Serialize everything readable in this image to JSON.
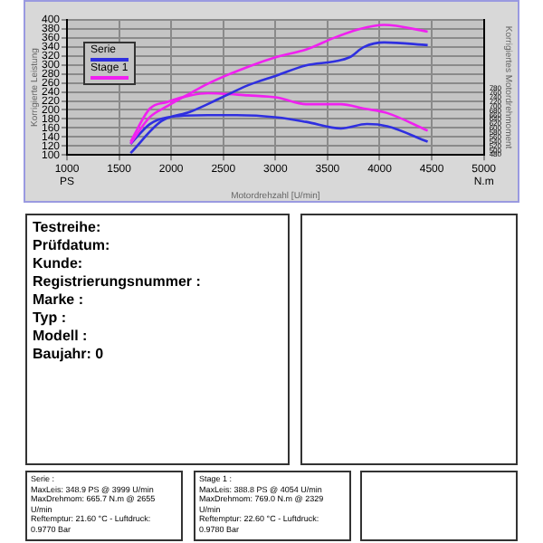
{
  "chart_data": {
    "type": "line",
    "xlabel": "Motordrehzahl [U/min]",
    "ylabel": "Korrigierte Leistung",
    "y2label": "Korrigiertes Motordrehmoment",
    "xlim": [
      1000,
      5000
    ],
    "xticks": [
      {
        "value": 1000,
        "label": "1000\nPS"
      },
      1500,
      2000,
      2500,
      3000,
      3500,
      4000,
      4500,
      {
        "value": 5000,
        "label": "5000\nN.m"
      }
    ],
    "ylim": [
      100,
      400
    ],
    "yticks": [
      100,
      120,
      140,
      160,
      180,
      200,
      220,
      240,
      260,
      280,
      300,
      320,
      340,
      360,
      380,
      400
    ],
    "y2lim": [
      480,
      1092
    ],
    "y2ticks": [
      480,
      500,
      520,
      540,
      560,
      580,
      600,
      620,
      640,
      660,
      680,
      700,
      720,
      740,
      760,
      780
    ],
    "grid": true,
    "legend": "top left",
    "marker": "none",
    "line_style": "solid",
    "series": [
      {
        "name": "Serie",
        "color": "#2f2fe0",
        "x": [
          1610,
          1905,
          2183,
          2461,
          2739,
          3017,
          3294,
          3572,
          3711,
          3850,
          4044,
          4461
        ],
        "values": [
          104,
          175,
          196,
          225,
          255,
          277,
          299,
          308,
          317,
          340,
          350,
          344
        ]
      },
      {
        "name": "Stage 1",
        "color": "#f020f0",
        "x": [
          1610,
          1795,
          1961,
          2183,
          2350,
          2739,
          3017,
          3294,
          3572,
          3794,
          4044,
          4461
        ],
        "values": [
          125,
          184,
          208,
          237,
          258,
          296,
          318,
          334,
          361,
          379,
          389,
          374
        ]
      },
      {
        "color": "#2f2fe0",
        "axis": "y2",
        "x": [
          1610,
          1795,
          1961,
          2350,
          2628,
          3017,
          3294,
          3628,
          3878,
          4072,
          4461
        ],
        "values": [
          530,
          620,
          650,
          660,
          660,
          650,
          630,
          600,
          620,
          610,
          540
        ]
      },
      {
        "color": "#f020f0",
        "axis": "y2",
        "x": [
          1610,
          1795,
          1961,
          2183,
          2350,
          2739,
          3017,
          3294,
          3628,
          3850,
          4072,
          4461
        ],
        "values": [
          540,
          690,
          720,
          750,
          760,
          750,
          740,
          710,
          710,
          690,
          670,
          590
        ]
      }
    ],
    "annotations": [
      "Testreihe:\nPrüfdatum:\nKunde:\nRegistrierungsnummer :\nMarke :\nTyp :\nModell :\nBaujahr: 0",
      "Serie :\nMaxLeis: 348.9 PS @ 3999 U/min\nMaxDrehmom: 665.7 N.m @ 2655 U/min\nReftemptur: 21.60 °C - Luftdruck: 0.9770 Bar",
      "Stage 1 :\nMaxLeis: 388.8 PS @ 4054 U/min\nMaxDrehmom: 769.0 N.m @ 2329 U/min\nReftemptur: 22.60 °C - Luftdruck: 0.9780 Bar"
    ]
  }
}
